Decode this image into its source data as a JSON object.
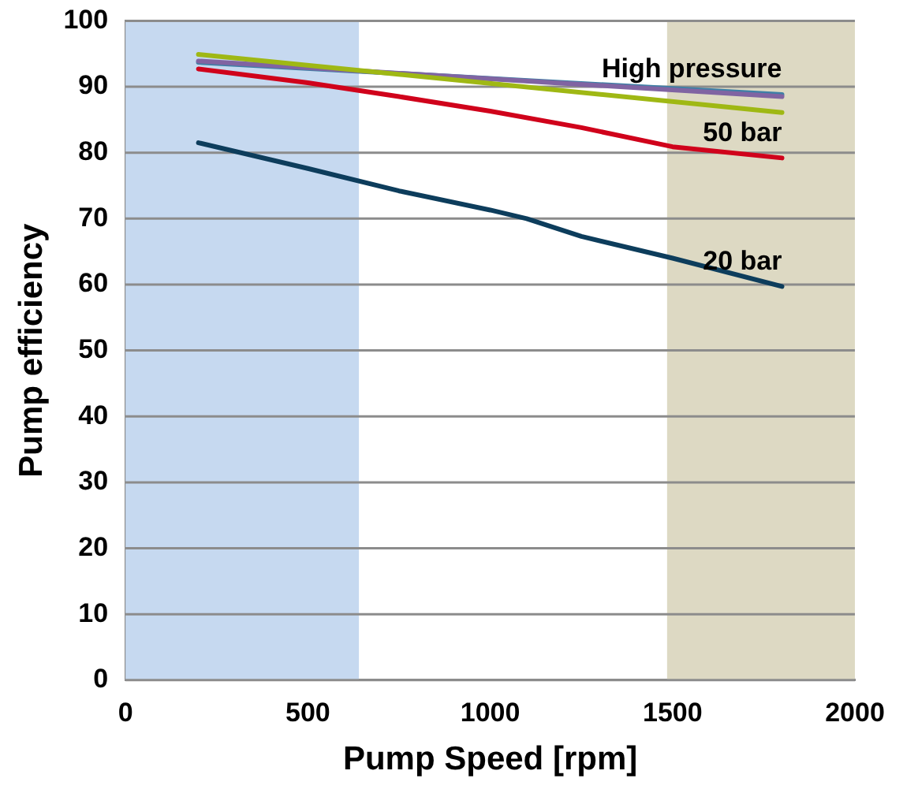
{
  "chart_data": {
    "type": "line",
    "xlabel": "Pump Speed [rpm]",
    "ylabel": "Pump efficiency",
    "xlim": [
      0,
      2000
    ],
    "xticks": [
      0,
      500,
      1000,
      1500,
      2000
    ],
    "ylim": [
      0,
      100
    ],
    "yticks": [
      0,
      10,
      20,
      30,
      40,
      50,
      60,
      70,
      80,
      90,
      100
    ],
    "grid": "y",
    "legend": false,
    "marker": "none",
    "line_style": "solid",
    "bands": [
      {
        "axis": "x",
        "from": 0,
        "to": 640,
        "color": "#c6d9f0"
      },
      {
        "axis": "x",
        "from": 1485,
        "to": 2000,
        "color": "#ddd9c3"
      }
    ],
    "series": [
      {
        "color": "#9fb814",
        "x": [
          200,
          1800
        ],
        "values": [
          94.9,
          86.1
        ]
      },
      {
        "color": "#8064a2",
        "x": [
          200,
          1800
        ],
        "values": [
          93.9,
          88.5
        ]
      },
      {
        "name": "High pressure",
        "color": "#3e7fa6",
        "x": [
          200,
          1800
        ],
        "values": [
          93.7,
          88.8
        ]
      },
      {
        "name": "50 bar",
        "color": "#d0021b",
        "x": [
          200,
          500,
          750,
          1000,
          1250,
          1500,
          1800
        ],
        "values": [
          92.7,
          90.6,
          88.5,
          86.3,
          83.8,
          80.9,
          79.2
        ]
      },
      {
        "name": "20 bar",
        "color": "#0d3d5c",
        "x": [
          200,
          500,
          750,
          1000,
          1100,
          1250,
          1500,
          1800
        ],
        "values": [
          81.5,
          77.6,
          74.2,
          71.3,
          70,
          67.3,
          64,
          59.7
        ]
      }
    ]
  }
}
